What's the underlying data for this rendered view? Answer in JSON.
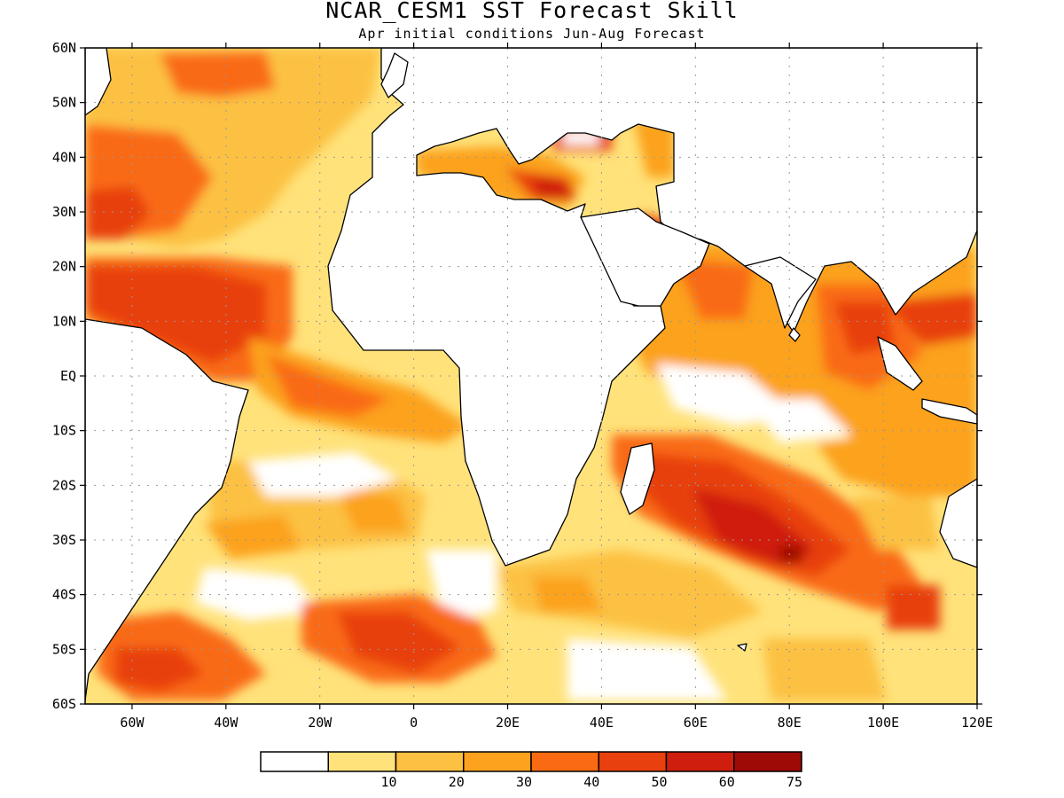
{
  "title": "NCAR_CESM1  SST Forecast Skill",
  "subtitle": "Apr initial conditions  Jun-Aug Forecast",
  "lat_labels": [
    "60N",
    "50N",
    "40N",
    "30N",
    "20N",
    "10N",
    "EQ",
    "10S",
    "20S",
    "30S",
    "40S",
    "50S",
    "60S"
  ],
  "lon_labels": [
    "60W",
    "40W",
    "20W",
    "0",
    "20E",
    "40E",
    "60E",
    "80E",
    "100E",
    "120E"
  ],
  "legend": {
    "bins": [
      {
        "color": "#ffffff"
      },
      {
        "color": "#ffe27a",
        "label": "10"
      },
      {
        "color": "#fcc143",
        "label": "20"
      },
      {
        "color": "#fca21e",
        "label": "30"
      },
      {
        "color": "#f96a12",
        "label": "40"
      },
      {
        "color": "#e8400e",
        "label": "50"
      },
      {
        "color": "#cf1e0e",
        "label": "60"
      },
      {
        "color": "#9e0a06",
        "label": "75"
      }
    ]
  },
  "colors": {
    "land": "#ffffff",
    "coast": "#000000",
    "grid": "#999999"
  }
}
